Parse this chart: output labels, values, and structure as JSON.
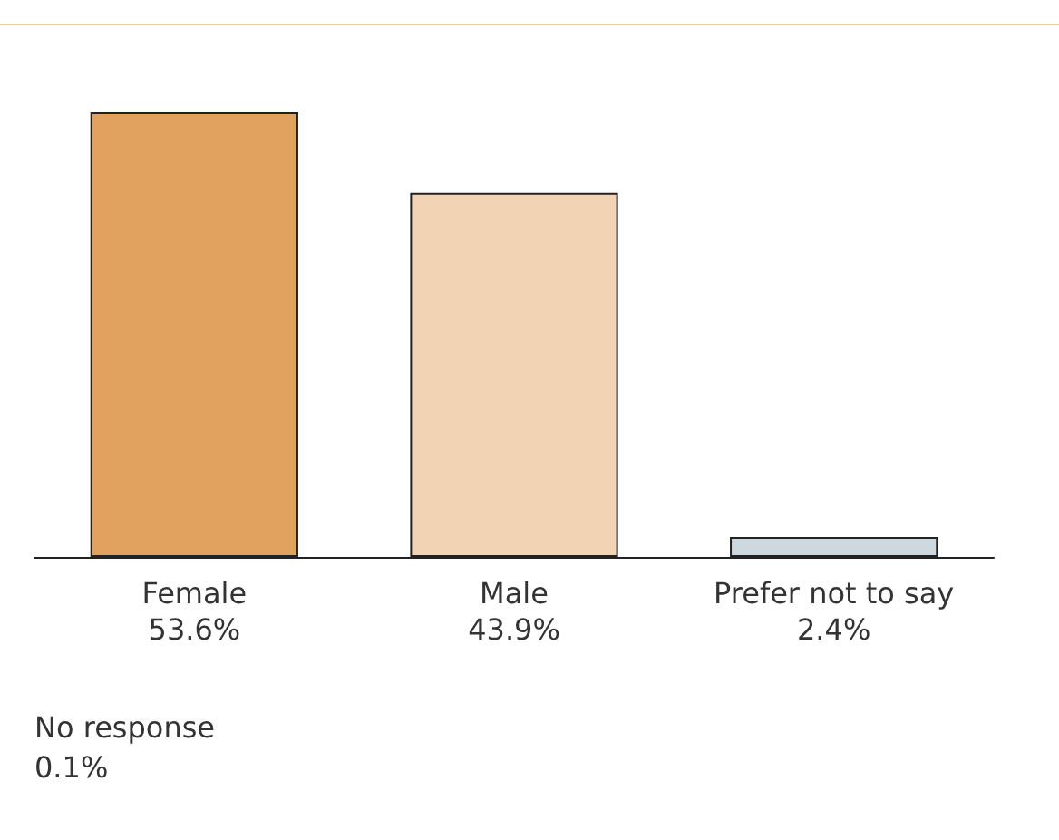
{
  "chart_data": {
    "type": "bar",
    "categories": [
      "Female",
      "Male",
      "Prefer not to say"
    ],
    "values": [
      53.6,
      43.9,
      2.4
    ],
    "colors": [
      "#e0a25e",
      "#f2d3b3",
      "#cdd8df"
    ],
    "value_labels": [
      "53.6%",
      "43.9%",
      "2.4%"
    ],
    "annotations": [
      "No response\n0.1%"
    ]
  }
}
